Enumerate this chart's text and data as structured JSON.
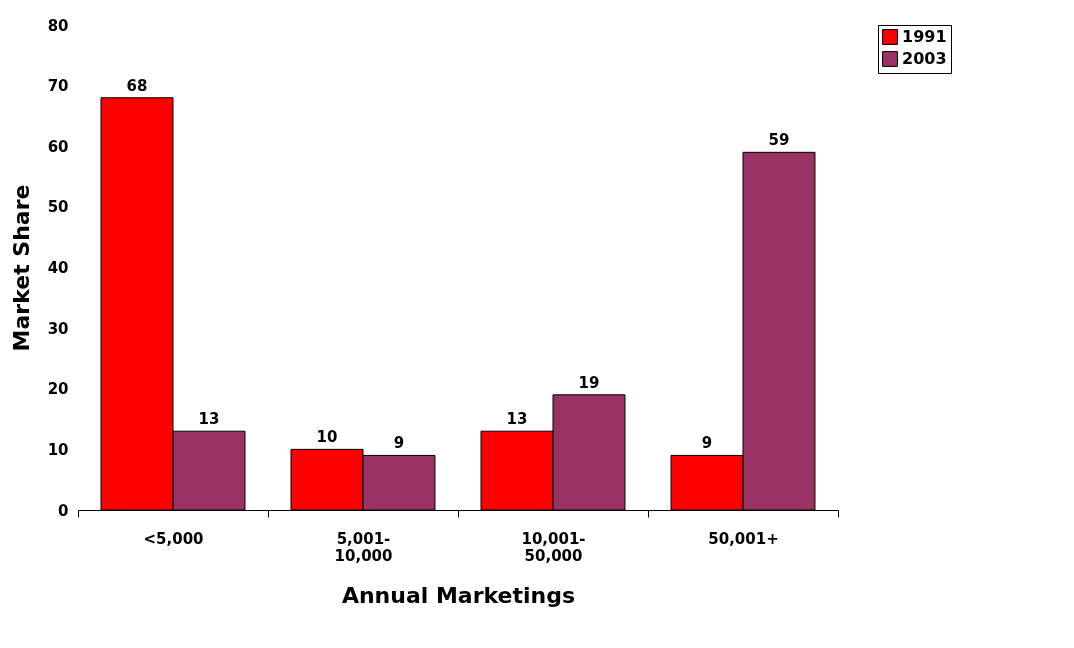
{
  "chart_data": {
    "type": "bar",
    "xlabel": "Annual Marketings",
    "ylabel": "Market Share",
    "categories": [
      "<5,000",
      "5,001-10,000",
      "10,001-50,000",
      "50,001+"
    ],
    "series": [
      {
        "name": "1991",
        "color": "#ff0000",
        "values": [
          68,
          10,
          13,
          9
        ]
      },
      {
        "name": "2003",
        "color": "#993366",
        "values": [
          13,
          9,
          19,
          59
        ]
      }
    ],
    "ylim": [
      0,
      80
    ],
    "yticks": [
      0,
      10,
      20,
      30,
      40,
      50,
      60,
      70,
      80
    ],
    "grid": false,
    "legend": "right",
    "data_labels": true
  }
}
